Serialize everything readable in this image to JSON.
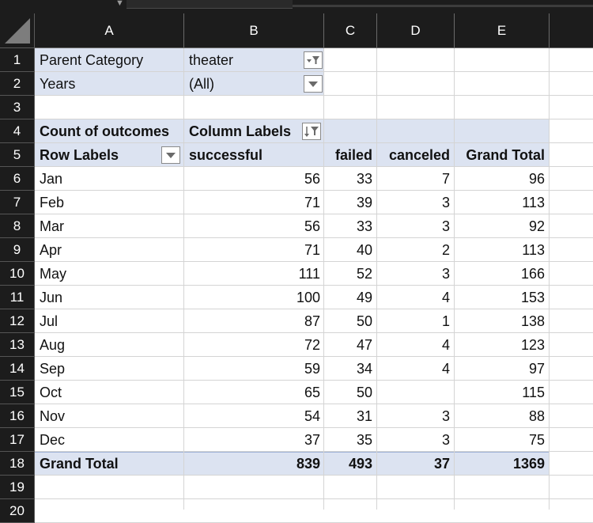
{
  "columns": [
    "A",
    "B",
    "C",
    "D",
    "E"
  ],
  "rows": [
    "1",
    "2",
    "3",
    "4",
    "5",
    "6",
    "7",
    "8",
    "9",
    "10",
    "11",
    "12",
    "13",
    "14",
    "15",
    "16",
    "17",
    "18",
    "19",
    "20"
  ],
  "filters": [
    {
      "label": "Parent Category",
      "value": "theater"
    },
    {
      "label": "Years",
      "value": "(All)"
    }
  ],
  "pivot": {
    "values_label": "Count of outcomes",
    "column_labels": "Column Labels",
    "row_labels": "Row Labels",
    "headers": [
      "successful",
      "failed",
      "canceled",
      "Grand Total"
    ],
    "rows": [
      {
        "label": "Jan",
        "successful": "56",
        "failed": "33",
        "canceled": "7",
        "total": "96"
      },
      {
        "label": "Feb",
        "successful": "71",
        "failed": "39",
        "canceled": "3",
        "total": "113"
      },
      {
        "label": "Mar",
        "successful": "56",
        "failed": "33",
        "canceled": "3",
        "total": "92"
      },
      {
        "label": "Apr",
        "successful": "71",
        "failed": "40",
        "canceled": "2",
        "total": "113"
      },
      {
        "label": "May",
        "successful": "111",
        "failed": "52",
        "canceled": "3",
        "total": "166"
      },
      {
        "label": "Jun",
        "successful": "100",
        "failed": "49",
        "canceled": "4",
        "total": "153"
      },
      {
        "label": "Jul",
        "successful": "87",
        "failed": "50",
        "canceled": "1",
        "total": "138"
      },
      {
        "label": "Aug",
        "successful": "72",
        "failed": "47",
        "canceled": "4",
        "total": "123"
      },
      {
        "label": "Sep",
        "successful": "59",
        "failed": "34",
        "canceled": "4",
        "total": "97"
      },
      {
        "label": "Oct",
        "successful": "65",
        "failed": "50",
        "canceled": "",
        "total": "115"
      },
      {
        "label": "Nov",
        "successful": "54",
        "failed": "31",
        "canceled": "3",
        "total": "88"
      },
      {
        "label": "Dec",
        "successful": "37",
        "failed": "35",
        "canceled": "3",
        "total": "75"
      }
    ],
    "grand_total": {
      "label": "Grand Total",
      "successful": "839",
      "failed": "493",
      "canceled": "37",
      "total": "1369"
    }
  },
  "colors": {
    "pivot_fill": "#dce3f1",
    "header_bg": "#1c1c1c",
    "total_rule": "#9db1d6"
  },
  "icons": {
    "filter_dropdown": "filter-dropdown-icon",
    "dropdown": "chevron-down-icon",
    "sort_filter": "sort-filter-icon",
    "select_all": "select-all-triangle-icon"
  }
}
